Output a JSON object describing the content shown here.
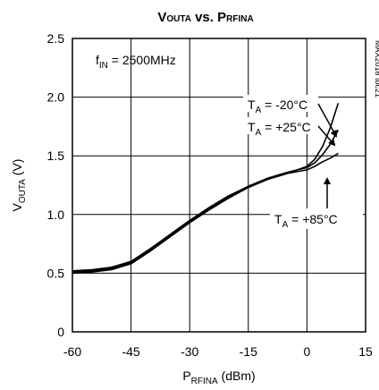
{
  "chart_data": {
    "type": "line",
    "title": "VOUTA vs. PRFINA",
    "title_parts": {
      "main1": "V",
      "sub1": "OUTA",
      "mid": " vs. ",
      "main2": "P",
      "sub2": "RFINA"
    },
    "xlabel_parts": {
      "main": "P",
      "sub": "RFINA",
      "rest": " (dBm)"
    },
    "ylabel_parts": {
      "main": "V",
      "sub": "OUTA",
      "rest": " (V)"
    },
    "xlim": [
      -60,
      15
    ],
    "ylim": [
      0,
      2.5
    ],
    "xticks": [
      "-60",
      "-45",
      "-30",
      "-15",
      "0",
      "15"
    ],
    "yticks": [
      "0",
      "0.5",
      "1.0",
      "1.5",
      "2.0",
      "2.5"
    ],
    "grid": true,
    "condition": {
      "main": "f",
      "sub": "IN",
      "rest": " = 2500MHz"
    },
    "figure_id": "MAX2016 toc21",
    "series": [
      {
        "name": "TA = -20°C",
        "label_parts": {
          "main": "T",
          "sub": "A",
          "rest": " = -20°C"
        },
        "x": [
          -60,
          -55,
          -50,
          -45,
          -40,
          -35,
          -30,
          -25,
          -20,
          -15,
          -10,
          -5,
          0,
          2,
          4,
          6,
          8
        ],
        "y": [
          0.5,
          0.51,
          0.53,
          0.58,
          0.69,
          0.81,
          0.93,
          1.04,
          1.14,
          1.23,
          1.3,
          1.35,
          1.41,
          1.47,
          1.58,
          1.74,
          1.95
        ]
      },
      {
        "name": "TA = +25°C",
        "label_parts": {
          "main": "T",
          "sub": "A",
          "rest": " = +25°C"
        },
        "x": [
          -60,
          -55,
          -50,
          -45,
          -40,
          -35,
          -30,
          -25,
          -20,
          -15,
          -10,
          -5,
          0,
          2,
          4,
          6,
          8
        ],
        "y": [
          0.51,
          0.52,
          0.54,
          0.59,
          0.7,
          0.82,
          0.94,
          1.05,
          1.15,
          1.24,
          1.31,
          1.36,
          1.4,
          1.44,
          1.51,
          1.6,
          1.72
        ]
      },
      {
        "name": "TA = +85°C",
        "label_parts": {
          "main": "T",
          "sub": "A",
          "rest": " = +85°C"
        },
        "x": [
          -60,
          -55,
          -50,
          -45,
          -40,
          -35,
          -30,
          -25,
          -20,
          -15,
          -10,
          -5,
          0,
          2,
          4,
          6,
          8
        ],
        "y": [
          0.52,
          0.53,
          0.55,
          0.6,
          0.71,
          0.83,
          0.95,
          1.06,
          1.16,
          1.24,
          1.3,
          1.35,
          1.38,
          1.41,
          1.45,
          1.48,
          1.52
        ]
      }
    ]
  }
}
